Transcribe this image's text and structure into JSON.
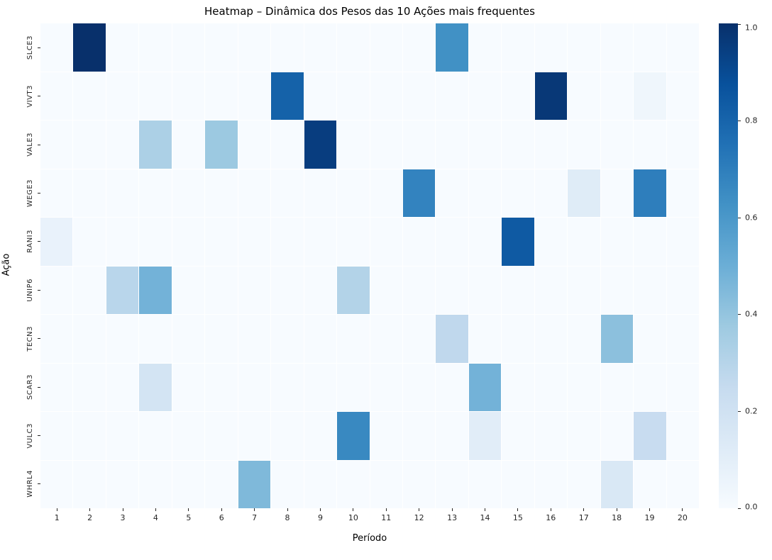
{
  "chart_data": {
    "type": "heatmap",
    "title": "Heatmap – Dinâmica dos Pesos das 10 Ações mais frequentes",
    "xlabel": "Período",
    "ylabel": "Ação",
    "x_ticks": [
      "1",
      "2",
      "3",
      "4",
      "5",
      "6",
      "7",
      "8",
      "9",
      "10",
      "11",
      "12",
      "13",
      "14",
      "15",
      "16",
      "17",
      "18",
      "19",
      "20"
    ],
    "y_ticks": [
      "SLCE3",
      "VIVT3",
      "VALE3",
      "WEGE3",
      "RANI3",
      "UNIP6",
      "TECN3",
      "SCAR3",
      "VULC3",
      "WHRL4"
    ],
    "colormap": "Blues",
    "colormap_anchors": [
      "#f7fbff",
      "#deebf7",
      "#c6dbef",
      "#9ecae1",
      "#6baed6",
      "#4292c6",
      "#2171b5",
      "#08519c",
      "#08306b"
    ],
    "vmin": 0.0,
    "vmax": 1.0,
    "colorbar_ticks": [
      "0.0",
      "0.2",
      "0.4",
      "0.6",
      "0.8",
      "1.0"
    ],
    "legend_position": "right-colorbar",
    "grid": "thin-white-cell-borders",
    "values": [
      [
        0,
        1.0,
        0,
        0,
        0,
        0,
        0,
        0,
        0,
        0,
        0,
        0,
        0.63,
        0,
        0,
        0,
        0,
        0,
        0,
        0
      ],
      [
        0,
        0,
        0,
        0,
        0,
        0,
        0,
        0.81,
        0,
        0,
        0,
        0,
        0,
        0,
        0,
        0.97,
        0,
        0,
        0.04,
        0
      ],
      [
        0,
        0,
        0,
        0.33,
        0,
        0.38,
        0,
        0,
        0.95,
        0,
        0,
        0,
        0,
        0,
        0,
        0,
        0,
        0,
        0,
        0
      ],
      [
        0,
        0,
        0,
        0,
        0,
        0,
        0,
        0,
        0,
        0,
        0,
        0.68,
        0,
        0,
        0,
        0,
        0.12,
        0,
        0.7,
        0
      ],
      [
        0.07,
        0,
        0,
        0,
        0,
        0,
        0,
        0,
        0,
        0,
        0,
        0,
        0,
        0,
        0.84,
        0,
        0,
        0,
        0,
        0
      ],
      [
        0,
        0,
        0.29,
        0.48,
        0,
        0,
        0,
        0,
        0,
        0.31,
        0,
        0,
        0,
        0,
        0,
        0,
        0,
        0,
        0,
        0
      ],
      [
        0,
        0,
        0,
        0,
        0,
        0,
        0,
        0,
        0,
        0,
        0,
        0,
        0.27,
        0,
        0,
        0,
        0,
        0.42,
        0,
        0
      ],
      [
        0,
        0,
        0,
        0.18,
        0,
        0,
        0,
        0,
        0,
        0,
        0,
        0,
        0,
        0.48,
        0,
        0,
        0,
        0,
        0,
        0
      ],
      [
        0,
        0,
        0,
        0,
        0,
        0,
        0,
        0,
        0,
        0.66,
        0,
        0,
        0,
        0.11,
        0,
        0,
        0,
        0,
        0.24,
        0
      ],
      [
        0,
        0,
        0,
        0,
        0,
        0,
        0.45,
        0,
        0,
        0,
        0,
        0,
        0,
        0,
        0,
        0,
        0,
        0.15,
        0,
        0
      ]
    ]
  }
}
